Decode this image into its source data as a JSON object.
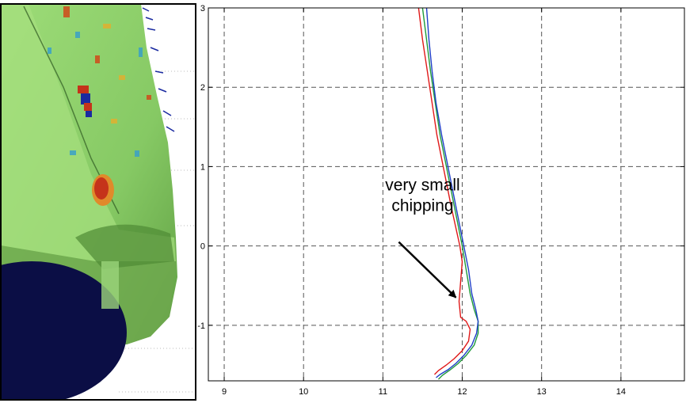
{
  "chart_data": [
    {
      "type": "image",
      "description_visible": false,
      "colors": {
        "surface": "#8fd16b",
        "surface_dark": "#4e8a35",
        "base": "#0b0e45",
        "hotspot_red": "#c5331a",
        "hotspot_blue": "#1a2aa0",
        "frame": "#000000"
      }
    },
    {
      "type": "line",
      "xlim": [
        8.8,
        14.8
      ],
      "ylim": [
        -1.7,
        3.0
      ],
      "xticks": [
        9,
        10,
        11,
        12,
        13,
        14
      ],
      "yticks": [
        -1,
        0,
        1,
        2,
        3
      ],
      "xtick_labels": [
        "9",
        "10",
        "11",
        "12",
        "13",
        "14"
      ],
      "ytick_labels": [
        "-1",
        "0",
        "1",
        "2",
        "3"
      ],
      "grid": true,
      "grid_style": "dashed",
      "title": "",
      "xlabel": "",
      "ylabel": "",
      "series": [
        {
          "color": "#1f9a3a",
          "x": [
            11.5,
            11.55,
            11.6,
            11.66,
            11.72,
            11.8,
            11.9,
            12.0,
            12.05,
            12.1,
            12.15,
            12.2,
            12.2,
            12.15,
            12.05,
            11.95,
            11.85,
            11.75,
            11.7
          ],
          "y": [
            3.0,
            2.6,
            2.2,
            1.8,
            1.4,
            1.0,
            0.5,
            0.0,
            -0.3,
            -0.6,
            -0.8,
            -0.95,
            -1.1,
            -1.25,
            -1.38,
            -1.48,
            -1.56,
            -1.63,
            -1.68
          ]
        },
        {
          "color": "#1f3fc8",
          "x": [
            11.55,
            11.58,
            11.62,
            11.67,
            11.74,
            11.82,
            11.92,
            12.02,
            12.08,
            12.12,
            12.17,
            12.2,
            12.18,
            12.12,
            12.02,
            11.92,
            11.82,
            11.72,
            11.67
          ],
          "y": [
            3.0,
            2.6,
            2.2,
            1.8,
            1.4,
            1.0,
            0.5,
            0.0,
            -0.3,
            -0.6,
            -0.8,
            -0.95,
            -1.1,
            -1.25,
            -1.38,
            -1.48,
            -1.56,
            -1.62,
            -1.66
          ]
        },
        {
          "color": "#e01818",
          "x": [
            11.45,
            11.5,
            11.56,
            11.62,
            11.68,
            11.76,
            11.86,
            11.97,
            12.0,
            11.98,
            11.96,
            11.98,
            12.05,
            12.1,
            12.08,
            12.0,
            11.9,
            11.8,
            11.7,
            11.65
          ],
          "y": [
            3.0,
            2.6,
            2.2,
            1.8,
            1.4,
            1.0,
            0.5,
            0.0,
            -0.2,
            -0.45,
            -0.7,
            -0.9,
            -0.95,
            -1.05,
            -1.2,
            -1.32,
            -1.42,
            -1.5,
            -1.57,
            -1.62
          ]
        }
      ],
      "annotations": [
        {
          "text_lines": [
            "very small",
            "chipping"
          ],
          "text_x": 11.5,
          "text_y": 0.7,
          "arrow_from": [
            11.2,
            0.05
          ],
          "arrow_to": [
            11.92,
            -0.65
          ]
        }
      ]
    }
  ]
}
